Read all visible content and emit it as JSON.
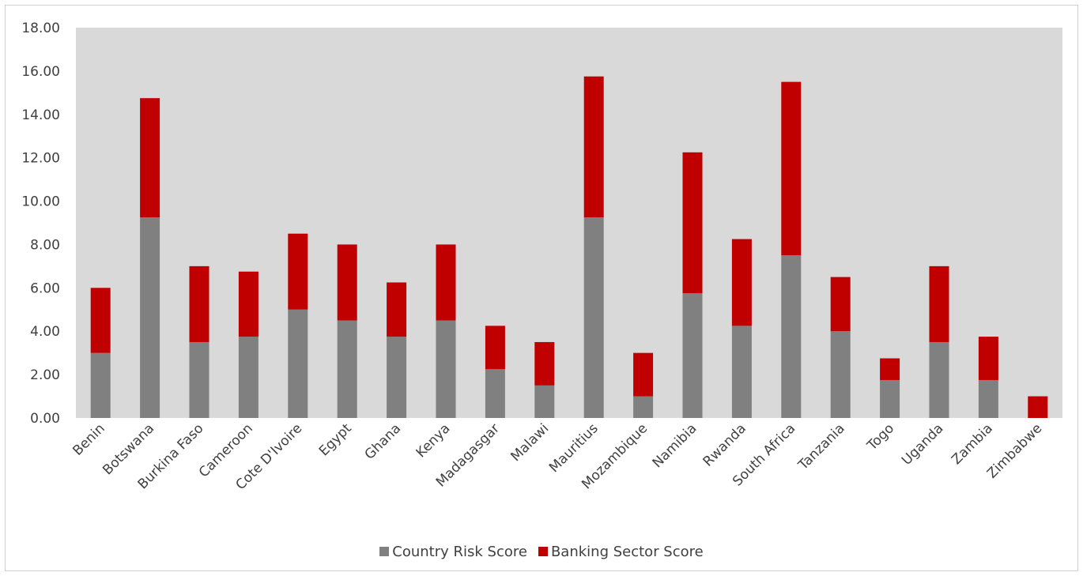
{
  "chart_data": {
    "type": "bar",
    "stacked": true,
    "title": "",
    "xlabel": "",
    "ylabel": "",
    "ylim": [
      0,
      18
    ],
    "y_ticks": [
      "0.00",
      "2.00",
      "4.00",
      "6.00",
      "8.00",
      "10.00",
      "12.00",
      "14.00",
      "16.00",
      "18.00"
    ],
    "grid": false,
    "plot_background": "#d9d9d9",
    "legend_position": "bottom",
    "categories": [
      "Benin",
      "Botswana",
      "Burkina Faso",
      "Cameroon",
      "Cote D'Ivoire",
      "Egypt",
      "Ghana",
      "Kenya",
      "Madagasgar",
      "Malawi",
      "Mauritius",
      "Mozambique",
      "Namibia",
      "Rwanda",
      "South Africa",
      "Tanzania",
      "Togo",
      "Uganda",
      "Zambia",
      "Zimbabwe"
    ],
    "series": [
      {
        "name": "Country Risk Score",
        "color": "#808080",
        "values": [
          3.0,
          9.25,
          3.5,
          3.75,
          5.0,
          4.5,
          3.75,
          4.5,
          2.25,
          1.5,
          9.25,
          1.0,
          5.75,
          4.25,
          7.5,
          4.0,
          1.75,
          3.5,
          1.75,
          0.0
        ]
      },
      {
        "name": "Banking Sector Score",
        "color": "#c00000",
        "values": [
          3.0,
          5.5,
          3.5,
          3.0,
          3.5,
          3.5,
          2.5,
          3.5,
          2.0,
          2.0,
          6.5,
          2.0,
          6.5,
          4.0,
          8.0,
          2.5,
          1.0,
          3.5,
          2.0,
          1.0
        ]
      }
    ]
  }
}
